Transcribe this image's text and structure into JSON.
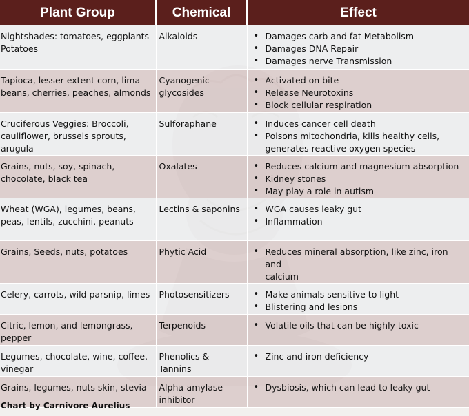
{
  "header": {
    "plant_group": "Plant Group",
    "chemical": "Chemical",
    "effect": "Effect"
  },
  "rows": [
    {
      "plant_lines": [
        "Nightshades: tomatoes, eggplants",
        "Potatoes"
      ],
      "chemical_lines": [
        "Alkaloids"
      ],
      "effects": [
        [
          "Damages carb and fat Metabolism"
        ],
        [
          "Damages DNA Repair"
        ],
        [
          "Damages nerve Transmission"
        ]
      ]
    },
    {
      "plant_lines": [
        "Tapioca, lesser extent corn, lima",
        "beans, cherries, peaches, almonds"
      ],
      "chemical_lines": [
        "Cyanogenic",
        "glycosides"
      ],
      "effects": [
        [
          "Activated on bite"
        ],
        [
          "Release Neurotoxins"
        ],
        [
          "Block cellular respiration"
        ]
      ]
    },
    {
      "plant_lines": [
        "Cruciferous Veggies: Broccoli,",
        "cauliflower, brussels sprouts,",
        "arugula"
      ],
      "chemical_lines": [
        "Sulforaphane"
      ],
      "effects": [
        [
          "Induces cancer cell death"
        ],
        [
          "Poisons mitochondria, kills healthy cells,",
          "generates reactive oxygen species"
        ]
      ]
    },
    {
      "plant_lines": [
        "Grains, nuts, soy, spinach,",
        "chocolate, black tea"
      ],
      "chemical_lines": [
        "Oxalates"
      ],
      "effects": [
        [
          "Reduces calcium and magnesium absorption"
        ],
        [
          "Kidney stones"
        ],
        [
          "May play a role in autism"
        ]
      ]
    },
    {
      "plant_lines": [
        "Wheat (WGA), legumes, beans,",
        "peas, lentils, zucchini, peanuts"
      ],
      "chemical_lines": [
        "Lectins & saponins"
      ],
      "effects": [
        [
          "WGA causes leaky gut"
        ],
        [
          "Inflammation"
        ]
      ]
    },
    {
      "plant_lines": [
        "Grains, Seeds, nuts, potatoes"
      ],
      "chemical_lines": [
        "Phytic Acid"
      ],
      "effects": [
        [
          "Reduces mineral absorption, like zinc, iron and",
          "calcium"
        ]
      ]
    },
    {
      "plant_lines": [
        "Celery, carrots, wild parsnip, limes"
      ],
      "chemical_lines": [
        "Photosensitizers"
      ],
      "effects": [
        [
          "Make animals sensitive to light"
        ],
        [
          "Blistering and lesions"
        ]
      ]
    },
    {
      "plant_lines": [
        "Citric, lemon, and lemongrass,",
        "pepper"
      ],
      "chemical_lines": [
        "Terpenoids"
      ],
      "effects": [
        [
          "Volatile oils that can be highly toxic"
        ]
      ]
    },
    {
      "plant_lines": [
        "Legumes, chocolate, wine, coffee,",
        "vinegar"
      ],
      "chemical_lines": [
        "Phenolics &",
        "Tannins"
      ],
      "effects": [
        [
          "Zinc and iron deficiency"
        ]
      ]
    },
    {
      "plant_lines": [
        "Grains, legumes, nuts skin, stevia"
      ],
      "chemical_lines": [
        "Alpha-amylase",
        "inhibitor"
      ],
      "effects": [
        [
          "Dysbiosis, which can lead to leaky gut"
        ]
      ]
    }
  ],
  "footer": "Chart by Carnivore Aurelius"
}
